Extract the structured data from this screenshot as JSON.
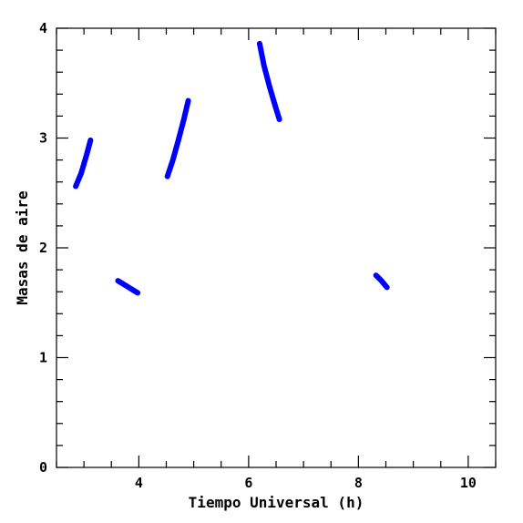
{
  "chart_data": {
    "type": "line",
    "title": "",
    "xlabel": "Tiempo Universal (h)",
    "ylabel": "Masas de aire",
    "xlim": [
      2.5,
      10.5
    ],
    "ylim": [
      0,
      4
    ],
    "x_major_ticks": [
      4,
      6,
      8,
      10
    ],
    "y_major_ticks": [
      0,
      1,
      2,
      3,
      4
    ],
    "x_minor_step": 0.5,
    "y_minor_step": 0.2,
    "grid": false,
    "line_color": "#0000ff",
    "series": [
      {
        "x": [
          2.85,
          2.95,
          3.05,
          3.12
        ],
        "y": [
          2.56,
          2.68,
          2.85,
          2.98
        ]
      },
      {
        "x": [
          3.62,
          3.75,
          3.88,
          3.98
        ],
        "y": [
          1.7,
          1.66,
          1.62,
          1.59
        ]
      },
      {
        "x": [
          4.52,
          4.62,
          4.72,
          4.82,
          4.9
        ],
        "y": [
          2.65,
          2.8,
          2.98,
          3.17,
          3.34
        ]
      },
      {
        "x": [
          6.2,
          6.28,
          6.38,
          6.48,
          6.56
        ],
        "y": [
          3.86,
          3.66,
          3.47,
          3.3,
          3.17
        ]
      },
      {
        "x": [
          8.32,
          8.42,
          8.52
        ],
        "y": [
          1.75,
          1.7,
          1.64
        ]
      }
    ]
  }
}
